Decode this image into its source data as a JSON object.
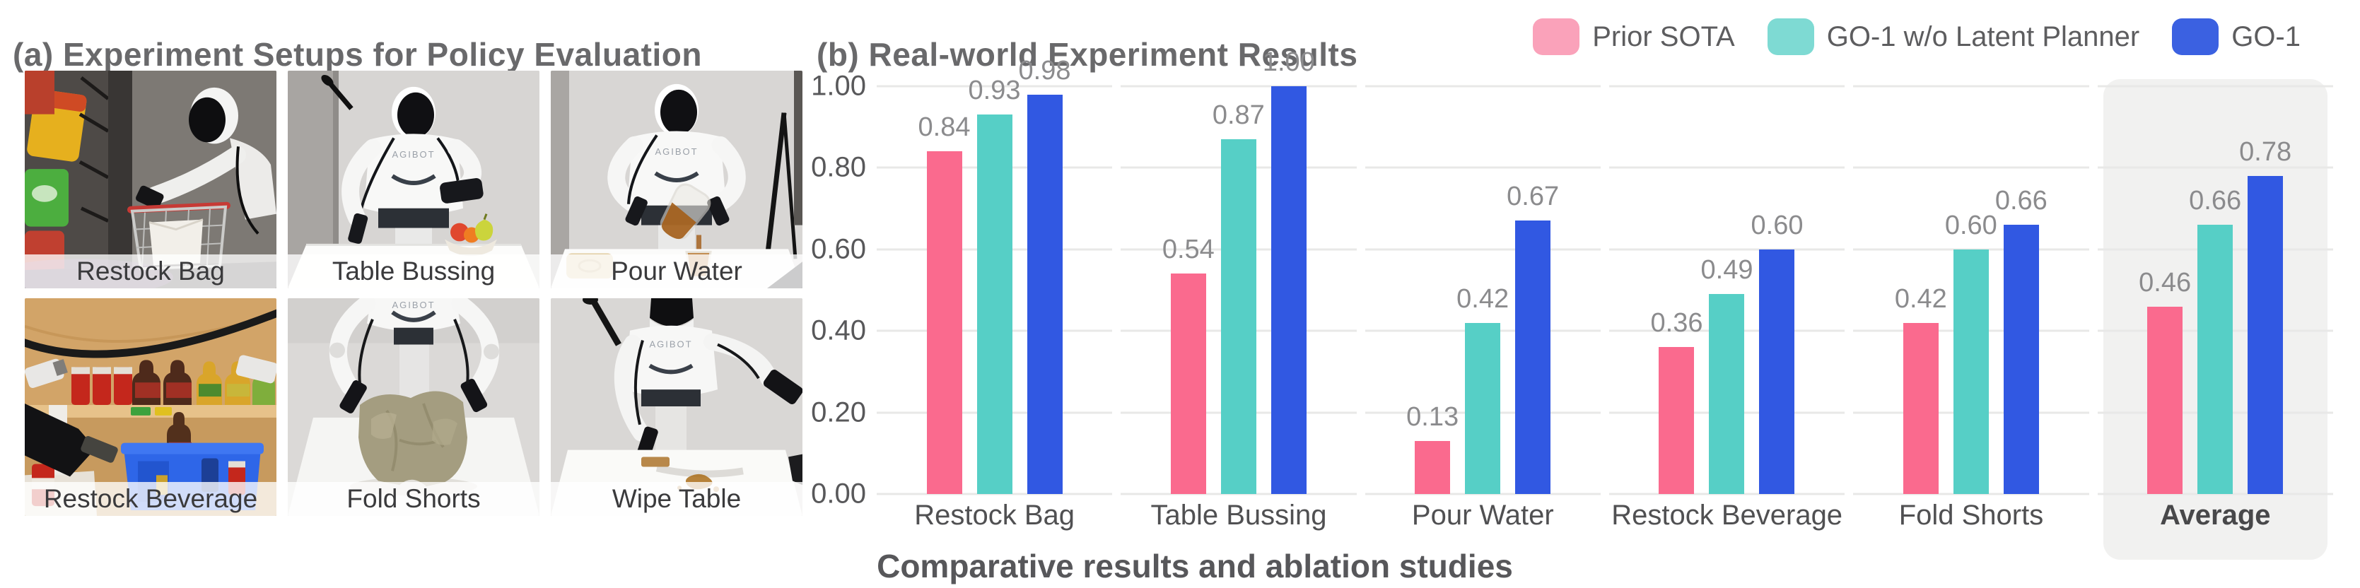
{
  "panel_a": {
    "title": "(a) Experiment Setups for Policy Evaluation",
    "robot_brand": "AGIBOT",
    "photos": [
      {
        "label": "Restock Bag"
      },
      {
        "label": "Table Bussing"
      },
      {
        "label": "Pour Water"
      },
      {
        "label": "Restock Beverage"
      },
      {
        "label": "Fold Shorts"
      },
      {
        "label": "Wipe Table"
      }
    ]
  },
  "panel_b": {
    "title": "(b) Real-world Experiment Results",
    "caption": "Comparative results and ablation studies"
  },
  "chart_data": {
    "type": "bar",
    "title": "(b) Real-world Experiment Results",
    "categories": [
      "Restock Bag",
      "Table Bussing",
      "Pour Water",
      "Restock Beverage",
      "Fold Shorts",
      "Average"
    ],
    "series": [
      {
        "name": "Prior SOTA",
        "color": "#FA6A8E",
        "legend_color": "#FAA2BA",
        "values": [
          0.84,
          0.54,
          0.13,
          0.36,
          0.42,
          0.46
        ]
      },
      {
        "name": "GO-1 w/o Latent Planner",
        "color": "#56CFC6",
        "legend_color": "#7EDAD3",
        "values": [
          0.93,
          0.87,
          0.42,
          0.49,
          0.6,
          0.66
        ]
      },
      {
        "name": "GO-1",
        "color": "#3158E2",
        "legend_color": "#3B61E1",
        "values": [
          0.98,
          1.0,
          0.67,
          0.6,
          0.66,
          0.78
        ]
      }
    ],
    "y_ticks": [
      "1.00",
      "0.80",
      "0.60",
      "0.40",
      "0.20",
      "0.00"
    ],
    "ylim": [
      0,
      1
    ],
    "value_label_decimals": 2,
    "grid": true,
    "legend_position": "top-right",
    "highlight_category": "Average",
    "highlight_bg_color": "#F1F1F0",
    "xlabel": "",
    "ylabel": ""
  }
}
